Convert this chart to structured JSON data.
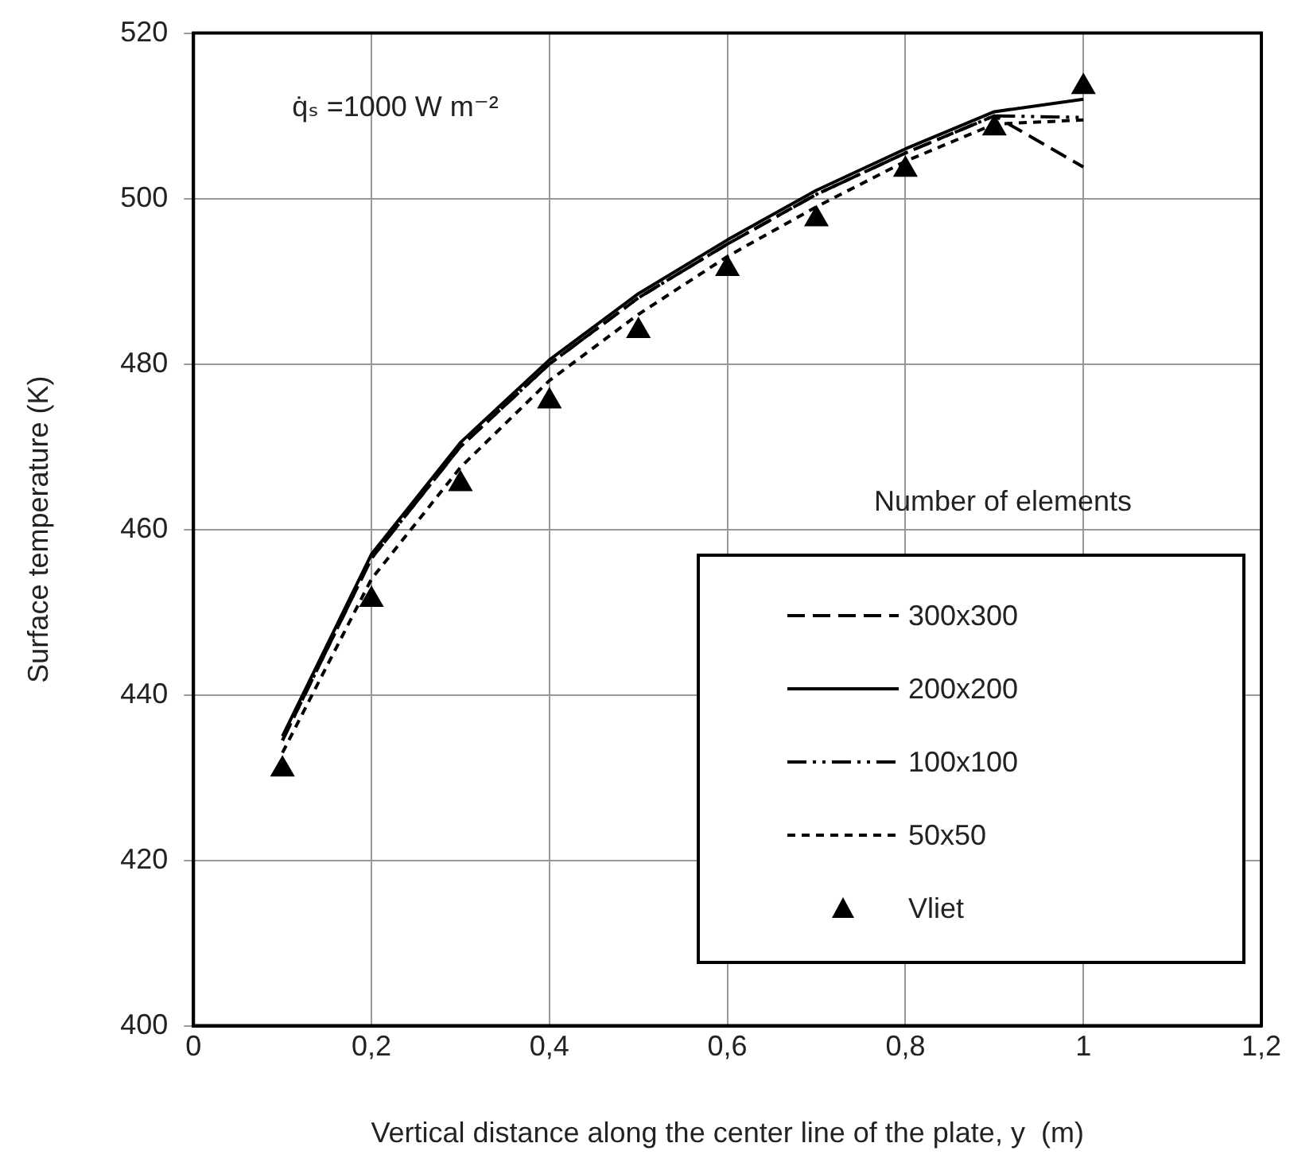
{
  "chart_data": {
    "type": "line",
    "xlabel": "Vertical distance along the center line of the plate, y  (m)",
    "ylabel": "Surface temperature (K)",
    "legend_title": "Number of elements",
    "annotations": [
      "q̇ₛ =1000 W m⁻²"
    ],
    "x": [
      0.1,
      0.2,
      0.3,
      0.4,
      0.5,
      0.6,
      0.7,
      0.8,
      0.9,
      1.0
    ],
    "xlim": [
      0,
      1.2
    ],
    "xticks": [
      0,
      {
        "value": 0.2,
        "label": "0,2"
      },
      {
        "value": 0.4,
        "label": "0,4"
      },
      {
        "value": 0.6,
        "label": "0,6"
      },
      {
        "value": 0.8,
        "label": "0,8"
      },
      1,
      {
        "value": 1.2,
        "label": "1,2"
      }
    ],
    "ylim": [
      400,
      520
    ],
    "yticks": [
      400,
      420,
      440,
      460,
      480,
      500,
      520
    ],
    "grid": true,
    "legend": "bottom right",
    "series": [
      {
        "name": "300x300",
        "color": "#000000",
        "line_style": "dashed",
        "marker": "none",
        "values": [
          434.5,
          456.5,
          470,
          480,
          488,
          494.5,
          500.5,
          505.5,
          510,
          503.8
        ]
      },
      {
        "name": "200x200",
        "color": "#000000",
        "line_style": "solid",
        "marker": "none",
        "values": [
          435,
          457,
          470.5,
          480.5,
          488.5,
          495,
          501,
          506,
          510.5,
          512
        ]
      },
      {
        "name": "100x100",
        "color": "#000000",
        "line_style": "dashdot",
        "marker": "none",
        "values": [
          434.5,
          456.5,
          470,
          480,
          488,
          494.5,
          500.5,
          505.5,
          510,
          509.8
        ]
      },
      {
        "name": "50x50",
        "color": "#000000",
        "line_style": "dotted",
        "marker": "none",
        "values": [
          433,
          454,
          467.5,
          478,
          486,
          493,
          499,
          504.5,
          509,
          509.5
        ]
      },
      {
        "name": "Vliet",
        "type": "scatter",
        "color": "#000000",
        "marker": "triangle",
        "values": [
          431,
          451.5,
          465.5,
          475.5,
          484,
          491.5,
          497.5,
          503.5,
          508.5,
          513.5
        ]
      }
    ]
  }
}
